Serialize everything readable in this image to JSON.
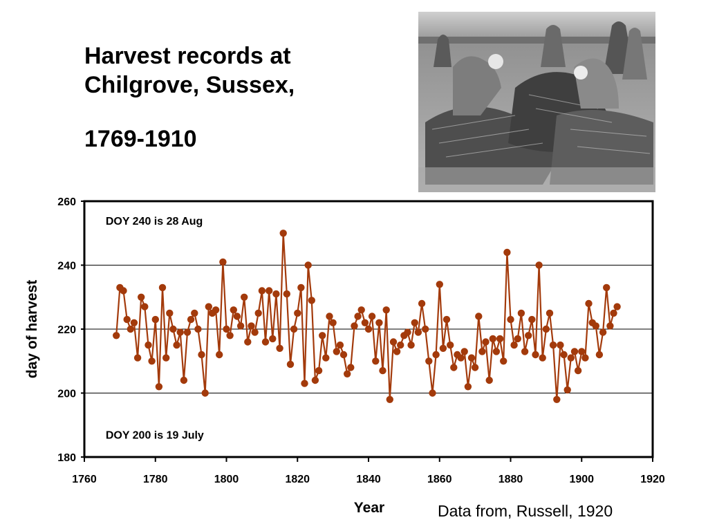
{
  "slide": {
    "title_line1": "Harvest records at",
    "title_line2": "Chilgrove, Sussex,",
    "title_years": "1769-1910",
    "source": "Data from, Russell, 1920",
    "photo_subject": "women-stacking-harvest-sheaves"
  },
  "chart_data": {
    "type": "line",
    "xlabel": "Year",
    "ylabel": "day of harvest",
    "xlim": [
      1760,
      1920
    ],
    "ylim": [
      180,
      260
    ],
    "xticks": [
      1760,
      1780,
      1800,
      1820,
      1840,
      1860,
      1880,
      1900,
      1920
    ],
    "yticks": [
      180,
      200,
      220,
      240,
      260
    ],
    "grid": "horizontal",
    "legend": "none",
    "color": "#a33a0b",
    "annotations": [
      {
        "text": "DOY 240 is 28 Aug",
        "x": 1766,
        "y": 254
      },
      {
        "text": "DOY 200 is 19 July",
        "x": 1766,
        "y": 187
      }
    ],
    "series": [
      {
        "x": [
          1769,
          1770,
          1771,
          1772,
          1773,
          1774,
          1775,
          1776,
          1777,
          1778,
          1779,
          1780,
          1781,
          1782,
          1783,
          1784,
          1785,
          1786,
          1787,
          1788,
          1789,
          1790,
          1791,
          1792,
          1793,
          1794,
          1795,
          1796,
          1797,
          1798,
          1799,
          1800,
          1801,
          1802,
          1803,
          1804,
          1805,
          1806,
          1807,
          1808,
          1809,
          1810,
          1811,
          1812,
          1813,
          1814,
          1815,
          1816,
          1817,
          1818,
          1819,
          1820,
          1821,
          1822,
          1823,
          1824,
          1825,
          1826,
          1827,
          1828,
          1829,
          1830,
          1831,
          1832,
          1833,
          1834,
          1835,
          1836,
          1837,
          1838,
          1839,
          1840,
          1841,
          1842,
          1843,
          1844,
          1845,
          1846,
          1847,
          1848,
          1849,
          1850,
          1851,
          1852,
          1853,
          1854,
          1855,
          1856,
          1857,
          1858,
          1859,
          1860,
          1861,
          1862,
          1863,
          1864,
          1865,
          1866,
          1867,
          1868,
          1869,
          1870,
          1871,
          1872,
          1873,
          1874,
          1875,
          1876,
          1877,
          1878,
          1879,
          1880,
          1881,
          1882,
          1883,
          1884,
          1885,
          1886,
          1887,
          1888,
          1889,
          1890,
          1891,
          1892,
          1893,
          1894,
          1895,
          1896,
          1897,
          1898,
          1899,
          1900,
          1901,
          1902,
          1903,
          1904,
          1905,
          1906,
          1907,
          1908,
          1909,
          1910
        ],
        "values": [
          218,
          233,
          232,
          223,
          220,
          222,
          211,
          230,
          227,
          215,
          210,
          223,
          202,
          233,
          211,
          225,
          220,
          215,
          219,
          204,
          219,
          223,
          225,
          220,
          212,
          200,
          227,
          225,
          226,
          212,
          241,
          220,
          218,
          226,
          224,
          221,
          230,
          216,
          221,
          219,
          225,
          232,
          216,
          232,
          217,
          231,
          214,
          250,
          231,
          209,
          220,
          225,
          233,
          203,
          240,
          229,
          204,
          207,
          218,
          211,
          224,
          222,
          213,
          215,
          212,
          206,
          208,
          221,
          224,
          226,
          222,
          220,
          224,
          210,
          222,
          207,
          226,
          198,
          216,
          213,
          215,
          218,
          219,
          215,
          222,
          219,
          228,
          220,
          210,
          200,
          212,
          234,
          214,
          223,
          215,
          208,
          212,
          211,
          213,
          202,
          211,
          208,
          224,
          213,
          216,
          204,
          217,
          213,
          217,
          210,
          244,
          223,
          215,
          217,
          225,
          213,
          218,
          223,
          212,
          240,
          211,
          220,
          225,
          215,
          198,
          215,
          212,
          201,
          211,
          213,
          207,
          213,
          211,
          228,
          222,
          221,
          212,
          219,
          233,
          221,
          225,
          227
        ]
      }
    ]
  }
}
